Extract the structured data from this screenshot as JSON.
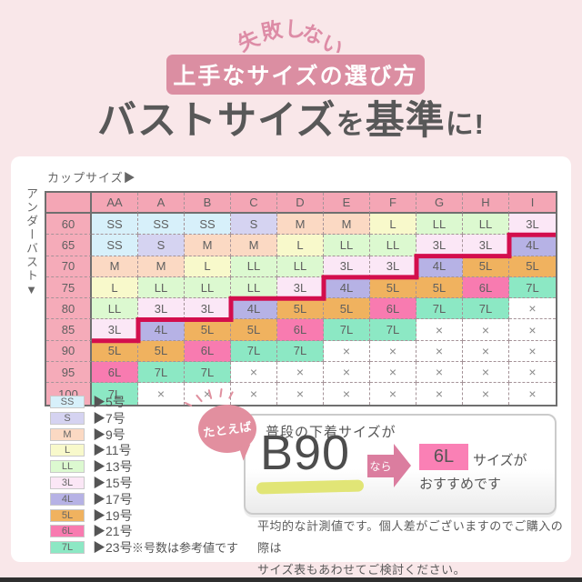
{
  "header": {
    "arc_text": "失敗しない",
    "arc_chars": [
      "失",
      "敗",
      "し",
      "な",
      "い"
    ],
    "banner": "上手なサイズの選び方",
    "title": "バストサイズを基準に!",
    "title_parts": [
      {
        "text": "バストサイズ",
        "small": false
      },
      {
        "text": "を",
        "small": true
      },
      {
        "text": "基準",
        "small": false
      },
      {
        "text": "に!",
        "small": true
      }
    ]
  },
  "chart_data": {
    "type": "table",
    "title": "バストサイズを基準に!",
    "x_header": "カップサイズ▶",
    "y_header": "アンダーバスト▼",
    "columns": [
      "AA",
      "A",
      "B",
      "C",
      "D",
      "E",
      "F",
      "G",
      "H",
      "I"
    ],
    "rows": [
      {
        "label": "60",
        "cells": [
          "SS",
          "SS",
          "SS",
          "S",
          "M",
          "M",
          "L",
          "LL",
          "LL",
          "3L"
        ]
      },
      {
        "label": "65",
        "cells": [
          "SS",
          "S",
          "M",
          "M",
          "L",
          "LL",
          "LL",
          "3L",
          "3L",
          "4L"
        ]
      },
      {
        "label": "70",
        "cells": [
          "M",
          "M",
          "L",
          "LL",
          "LL",
          "3L",
          "3L",
          "4L",
          "5L",
          "5L"
        ]
      },
      {
        "label": "75",
        "cells": [
          "L",
          "LL",
          "LL",
          "LL",
          "3L",
          "4L",
          "5L",
          "5L",
          "6L",
          "7L"
        ]
      },
      {
        "label": "80",
        "cells": [
          "LL",
          "3L",
          "3L",
          "4L",
          "5L",
          "5L",
          "6L",
          "7L",
          "7L",
          "×"
        ]
      },
      {
        "label": "85",
        "cells": [
          "3L",
          "4L",
          "5L",
          "5L",
          "6L",
          "7L",
          "7L",
          "×",
          "×",
          "×"
        ]
      },
      {
        "label": "90",
        "cells": [
          "5L",
          "5L",
          "6L",
          "7L",
          "7L",
          "×",
          "×",
          "×",
          "×",
          "×"
        ]
      },
      {
        "label": "95",
        "cells": [
          "6L",
          "7L",
          "7L",
          "×",
          "×",
          "×",
          "×",
          "×",
          "×",
          "×"
        ]
      },
      {
        "label": "100",
        "cells": [
          "7L",
          "×",
          "×",
          "×",
          "×",
          "×",
          "×",
          "×",
          "×",
          "×"
        ]
      }
    ],
    "boundary_line_note": "red stepped line separates 3L and smaller from 4L and larger"
  },
  "legend": {
    "items": [
      {
        "size": "SS",
        "label": "▶5号"
      },
      {
        "size": "S",
        "label": "▶7号"
      },
      {
        "size": "M",
        "label": "▶9号"
      },
      {
        "size": "L",
        "label": "▶11号"
      },
      {
        "size": "LL",
        "label": "▶13号"
      },
      {
        "size": "3L",
        "label": "▶15号"
      },
      {
        "size": "4L",
        "label": "▶17号"
      },
      {
        "size": "5L",
        "label": "▶19号"
      },
      {
        "size": "6L",
        "label": "▶21号"
      },
      {
        "size": "7L",
        "label": "▶23号"
      }
    ],
    "note": "※号数は参考値です"
  },
  "example": {
    "bubble": "たとえば",
    "intro": "普段の下着サイズが",
    "size": "B90",
    "connector": "なら",
    "result": "6L",
    "suffix1": "サイズが",
    "suffix2": "おすすめです"
  },
  "disclaimer": {
    "line1": "平均的な計測値です。個人差がございますのでご購入の際は",
    "line2": "サイズ表もあわせてご検討ください。"
  },
  "colors": {
    "background": "#f9e7e9",
    "banner_bg": "#db8ea2",
    "accent_pink": "#e28f9f",
    "header_row_pink": "#f4a6b5",
    "label_col_pink": "#f5abb9",
    "red_line": "#d30e4d",
    "result_box_pink": "#fa80b5",
    "arrow_pink": "#db7d9f",
    "highlight_yellow": "#dde25f",
    "size_colors": {
      "SS": "#d7f0fa",
      "S": "#d5d3f1",
      "M": "#fbd9c3",
      "L": "#f8f9cb",
      "LL": "#dcf9d0",
      "3L": "#fbe7f6",
      "4L": "#b6b2e5",
      "5L": "#f0b25f",
      "6L": "#f87bb0",
      "7L": "#8ce8c4",
      "×": "#ffffff"
    }
  }
}
